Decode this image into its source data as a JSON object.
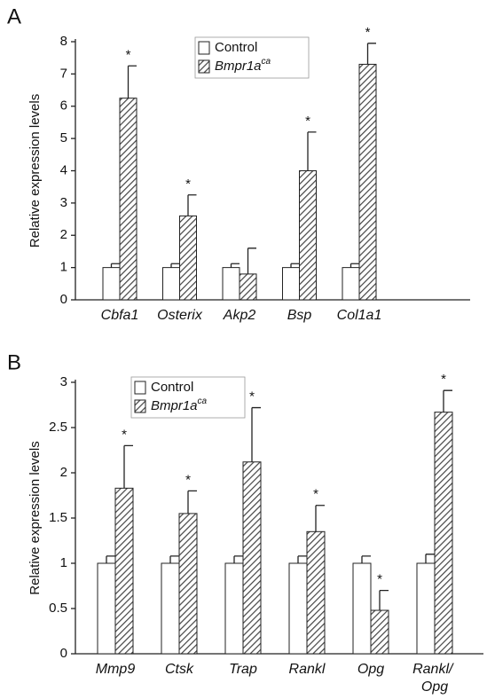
{
  "chart_data": [
    {
      "type": "bar",
      "panel": "A",
      "ylabel": "Relative expression levels",
      "categories": [
        "Cbfa1",
        "Osterix",
        "Akp2",
        "Bsp",
        "Col1a1"
      ],
      "series": [
        {
          "name": "Control",
          "color": "#ffffff",
          "hatch": false,
          "values": [
            1,
            1,
            1,
            1,
            1
          ],
          "errors": [
            0.12,
            0.12,
            0.12,
            0.12,
            0.12
          ]
        },
        {
          "name": "Bmpr1a",
          "superscript": "ca",
          "color": "#444444",
          "hatch": true,
          "values": [
            6.25,
            2.6,
            0.8,
            4.0,
            7.3
          ],
          "errors": [
            1.0,
            0.65,
            0.8,
            1.2,
            0.65
          ]
        }
      ],
      "annotations": [
        "*",
        "*",
        null,
        "*",
        "*"
      ],
      "ylim": [
        0,
        8
      ],
      "yticks": [
        0,
        1,
        2,
        3,
        4,
        5,
        6,
        7,
        8
      ]
    },
    {
      "type": "bar",
      "panel": "B",
      "ylabel": "Relative expression levels",
      "categories": [
        "Mmp9",
        "Ctsk",
        "Trap",
        "Rankl",
        "Opg",
        "Rankl/ Opg"
      ],
      "series": [
        {
          "name": "Control",
          "color": "#ffffff",
          "hatch": false,
          "values": [
            1,
            1,
            1,
            1,
            1,
            1
          ],
          "errors": [
            0.08,
            0.08,
            0.08,
            0.08,
            0.08,
            0.1
          ]
        },
        {
          "name": "Bmpr1a",
          "superscript": "ca",
          "color": "#444444",
          "hatch": true,
          "values": [
            1.83,
            1.55,
            2.12,
            1.35,
            0.48,
            2.67
          ],
          "errors": [
            0.47,
            0.25,
            0.6,
            0.29,
            0.22,
            0.24
          ]
        }
      ],
      "annotations": [
        "*",
        "*",
        "*",
        "*",
        "*",
        "*"
      ],
      "ylim": [
        0,
        3
      ],
      "yticks": [
        0,
        0.5,
        1,
        1.5,
        2,
        2.5,
        3
      ]
    }
  ]
}
